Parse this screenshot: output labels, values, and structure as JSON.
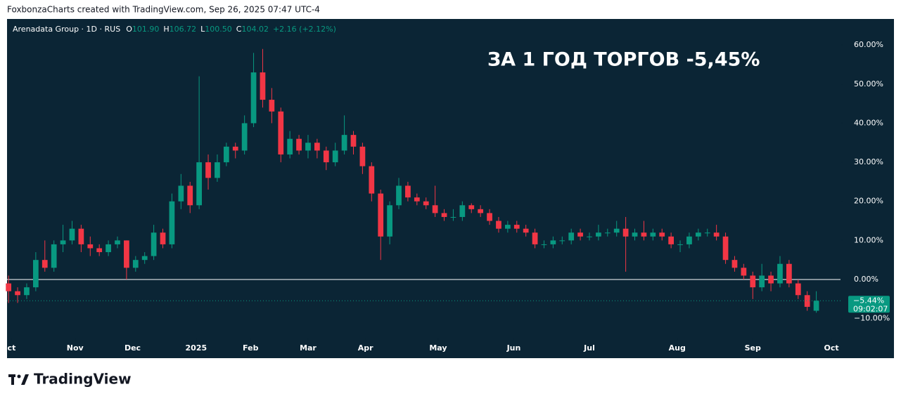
{
  "attribution": "FoxbonzaCharts created with TradingView.com, Sep 26, 2025 07:47 UTC-4",
  "brand": "TradingView",
  "chart_data": {
    "type": "candlestick",
    "header": {
      "symbol": "Arenadata Group · 1D · RUS",
      "items": [
        {
          "label": "O",
          "value": "101.90"
        },
        {
          "label": "H",
          "value": "106.72"
        },
        {
          "label": "L",
          "value": "100.50"
        },
        {
          "label": "C",
          "value": "104.02"
        }
      ],
      "change": "+2.16 (+2.12%)"
    },
    "annotation": "ЗА 1 ГОД ТОРГОВ -5,45%",
    "up_color": "#089981",
    "down_color": "#f23645",
    "baseline": 0,
    "last_label": "−5.44%",
    "countdown": "09:02:07",
    "x": [
      0,
      3,
      6,
      9,
      12,
      15,
      18,
      21,
      24,
      27,
      30,
      33,
      36,
      39,
      42,
      45,
      48,
      51,
      54,
      57,
      60,
      63,
      66,
      69,
      72,
      75,
      78,
      81,
      84,
      87,
      90,
      93,
      96,
      99,
      102,
      105,
      108,
      111,
      114,
      117,
      120,
      123,
      126,
      129,
      132,
      135,
      138,
      141,
      144,
      147,
      150,
      153,
      156,
      159,
      162,
      165,
      168,
      171,
      174,
      177,
      180,
      183,
      186,
      189,
      192,
      195,
      198,
      201,
      204,
      207,
      210,
      213,
      216,
      219,
      222,
      225,
      228,
      231,
      234,
      237,
      240,
      243,
      246,
      249,
      252,
      255,
      258,
      261,
      264,
      267
    ],
    "open": [
      -1,
      -3,
      -4,
      -2,
      5,
      3,
      9,
      10,
      13,
      9,
      8,
      7,
      9,
      10,
      3,
      5,
      6,
      12,
      9,
      20,
      24,
      19,
      30,
      26,
      30,
      34,
      33,
      40,
      53,
      46,
      43,
      32,
      36,
      33,
      35,
      33,
      30,
      33,
      37,
      34,
      29,
      22,
      11,
      19,
      24,
      21,
      20,
      19,
      17,
      16,
      16,
      19,
      18,
      17,
      15,
      13,
      14,
      13,
      12,
      9,
      9,
      10,
      10,
      12,
      11,
      11,
      12,
      12,
      13,
      11,
      12,
      11,
      12,
      11,
      9,
      9,
      11,
      12,
      12,
      11,
      5,
      3,
      1,
      -2,
      1,
      -1,
      4,
      -1,
      -4,
      -8
    ],
    "high": [
      1,
      -2,
      -1,
      7,
      10,
      10,
      14,
      15,
      14,
      11,
      9,
      10,
      11,
      10,
      6,
      7,
      14,
      13,
      22,
      27,
      25,
      52,
      32,
      32,
      35,
      35,
      42,
      58,
      59,
      49,
      44,
      38,
      37,
      37,
      36,
      34,
      35,
      42,
      38,
      35,
      30,
      23,
      20,
      26,
      25,
      22,
      21,
      24,
      18,
      18,
      20,
      19.5,
      19,
      18,
      16,
      15,
      15,
      14,
      13,
      10,
      11,
      11,
      13,
      13,
      12,
      14,
      13,
      15,
      16,
      13,
      15,
      13,
      13,
      12,
      10,
      12,
      13,
      13,
      14,
      12,
      6,
      4,
      2,
      4,
      2,
      6,
      5,
      0,
      -3,
      -3
    ],
    "low": [
      -6,
      -6,
      -5,
      -3,
      2,
      2,
      7,
      9,
      7,
      6,
      6,
      6,
      8,
      0,
      2,
      4,
      5,
      8,
      8,
      18,
      17,
      18,
      23,
      25,
      29,
      31,
      32,
      39,
      44,
      40,
      30,
      31,
      32,
      31,
      31,
      28,
      29,
      32,
      32,
      27,
      20,
      5,
      9,
      18,
      20,
      19,
      18,
      16,
      15,
      15,
      15,
      17,
      16,
      14,
      12,
      12,
      12,
      11,
      8,
      8,
      8,
      9,
      9,
      10,
      10,
      10,
      11,
      11,
      2,
      10,
      10,
      10,
      10,
      8,
      7,
      8,
      10,
      11,
      10,
      4,
      2,
      0,
      -5,
      -3,
      -3,
      -2,
      -2,
      -5,
      -8,
      -8.5
    ],
    "close": [
      -3,
      -4,
      -2,
      5,
      3,
      9,
      10,
      13,
      9,
      8,
      7,
      9,
      10,
      3,
      5,
      6,
      12,
      9,
      20,
      24,
      19,
      30,
      26,
      30,
      34,
      33,
      40,
      53,
      46,
      43,
      32,
      36,
      33,
      35,
      33,
      30,
      33,
      37,
      34,
      29,
      22,
      11,
      19,
      24,
      21,
      20,
      19,
      17,
      16,
      16,
      19,
      18,
      17,
      15,
      13,
      14,
      13,
      12,
      9,
      9,
      10,
      10,
      12,
      11,
      11,
      12,
      12,
      13,
      11,
      12,
      11,
      12,
      11,
      9,
      9,
      11,
      12,
      12,
      11,
      5,
      3,
      1,
      -2,
      1,
      -1,
      4,
      -1,
      -4,
      -7,
      -5.44
    ],
    "xlim": [
      -0.5,
      275
    ],
    "xticks": [
      {
        "value": 1,
        "label": "ct"
      },
      {
        "value": 22,
        "label": "Nov"
      },
      {
        "value": 41,
        "label": "Dec"
      },
      {
        "value": 62,
        "label": "2025"
      },
      {
        "value": 80,
        "label": "Feb"
      },
      {
        "value": 99,
        "label": "Mar"
      },
      {
        "value": 118,
        "label": "Apr"
      },
      {
        "value": 142,
        "label": "May"
      },
      {
        "value": 167,
        "label": "Jun"
      },
      {
        "value": 192,
        "label": "Jul"
      },
      {
        "value": 221,
        "label": "Aug"
      },
      {
        "value": 246,
        "label": "Sep"
      },
      {
        "value": 272,
        "label": "Oct"
      }
    ],
    "ylim": [
      -15.1,
      66.5
    ],
    "yticks": [
      {
        "value": -10,
        "label": "−10.00%"
      },
      {
        "value": 0,
        "label": "0.00%"
      },
      {
        "value": 10,
        "label": "10.00%"
      },
      {
        "value": 20,
        "label": "20.00%"
      },
      {
        "value": 30,
        "label": "30.00%"
      },
      {
        "value": 40,
        "label": "40.00%"
      },
      {
        "value": 50,
        "label": "50.00%"
      },
      {
        "value": 60,
        "label": "60.00%"
      }
    ]
  }
}
